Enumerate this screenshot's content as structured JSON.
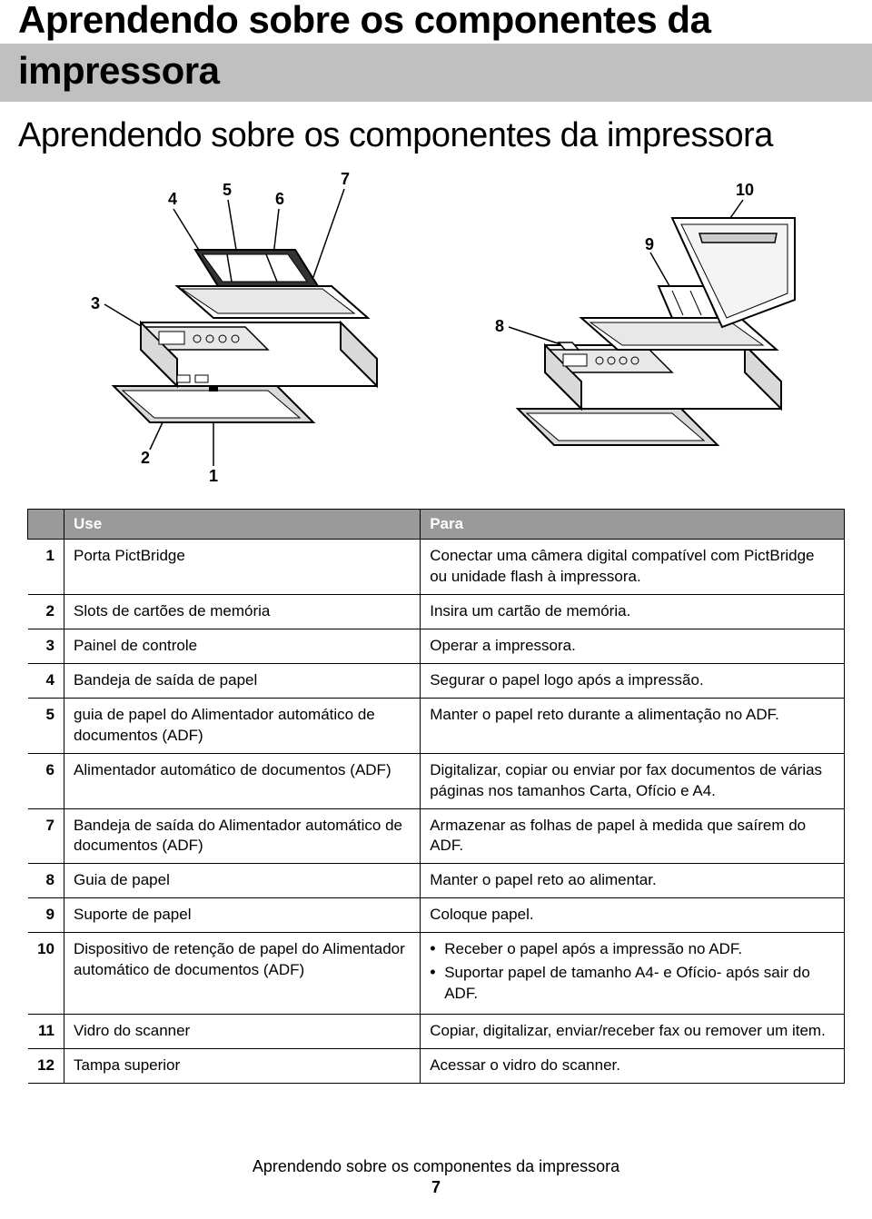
{
  "title_line1": "Aprendendo sobre os componentes da",
  "title_line2": "impressora",
  "subtitle": "Aprendendo sobre os componentes da impressora",
  "diagram": {
    "left_labels": [
      "1",
      "2",
      "3",
      "4",
      "5",
      "6",
      "7"
    ],
    "right_labels": [
      "8",
      "9",
      "10"
    ],
    "line_color": "#000000",
    "printer_fill": "#ffffff",
    "printer_shade": "#d9d9d9",
    "label_fontsize": 18
  },
  "table": {
    "headers": {
      "use": "Use",
      "para": "Para"
    },
    "header_bg": "#9a9a9a",
    "header_fg": "#ffffff",
    "border_color": "#000000",
    "rows": [
      {
        "n": "1",
        "use": "Porta PictBridge",
        "para_type": "text",
        "para": "Conectar uma câmera digital compatível com PictBridge ou unidade flash à impressora."
      },
      {
        "n": "2",
        "use": "Slots de cartões de memória",
        "para_type": "text",
        "para": "Insira um cartão de memória."
      },
      {
        "n": "3",
        "use": "Painel de controle",
        "para_type": "text",
        "para": "Operar a impressora."
      },
      {
        "n": "4",
        "use": "Bandeja de saída de papel",
        "para_type": "text",
        "para": "Segurar o papel logo após a impressão."
      },
      {
        "n": "5",
        "use": "guia de papel do Alimentador automático de documentos (ADF)",
        "para_type": "text",
        "para": "Manter o papel reto durante a alimentação no ADF."
      },
      {
        "n": "6",
        "use": "Alimentador automático de documentos (ADF)",
        "para_type": "text",
        "para": "Digitalizar, copiar ou enviar por fax documentos de várias páginas nos tamanhos Carta, Ofício e A4."
      },
      {
        "n": "7",
        "use": "Bandeja de saída do Alimentador automático de documentos (ADF)",
        "para_type": "text",
        "para": "Armazenar as folhas de papel à medida que saírem do ADF."
      },
      {
        "n": "8",
        "use": "Guia de papel",
        "para_type": "text",
        "para": "Manter o papel reto ao alimentar."
      },
      {
        "n": "9",
        "use": "Suporte de papel",
        "para_type": "text",
        "para": "Coloque papel."
      },
      {
        "n": "10",
        "use": "Dispositivo de retenção de papel do Alimentador automático de documentos (ADF)",
        "para_type": "bullets",
        "para_items": [
          "Receber o papel após a impressão no ADF.",
          "Suportar papel de tamanho A4- e Ofício- após sair do ADF."
        ]
      },
      {
        "n": "11",
        "use": "Vidro do scanner",
        "para_type": "text",
        "para": "Copiar, digitalizar, enviar/receber fax ou remover um item."
      },
      {
        "n": "12",
        "use": "Tampa superior",
        "para_type": "text",
        "para": "Acessar o vidro do scanner."
      }
    ]
  },
  "footer": {
    "title": "Aprendendo sobre os componentes da impressora",
    "page": "7"
  },
  "colors": {
    "header_bar_bg": "#c0c0c0",
    "page_bg": "#ffffff",
    "text": "#000000"
  }
}
